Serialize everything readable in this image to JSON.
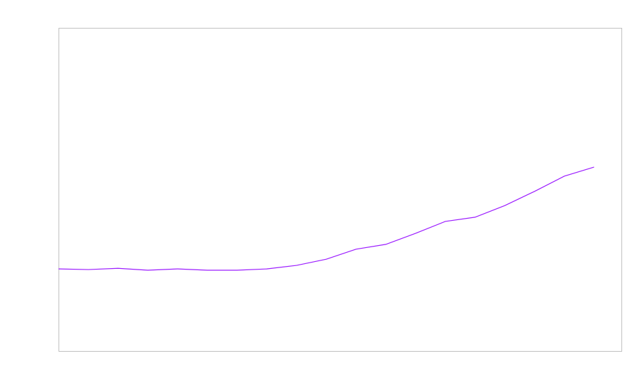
{
  "chart_data": {
    "type": "line",
    "title": "",
    "xlabel": "",
    "ylabel": "",
    "x": [
      0,
      1,
      2,
      3,
      4,
      5,
      6,
      7,
      8,
      9,
      10,
      11,
      12,
      13,
      14,
      15,
      16,
      17,
      18
    ],
    "series": [
      {
        "values": [
          25.4,
          25.2,
          25.6,
          25.0,
          25.4,
          25.0,
          25.0,
          25.4,
          26.5,
          28.4,
          31.5,
          33.0,
          36.4,
          40.1,
          41.4,
          45.0,
          49.4,
          54.1,
          56.9
        ],
        "color": "#9b1cff"
      }
    ],
    "xlim": [
      0,
      18.92
    ],
    "ylim": [
      0,
      100
    ],
    "grid": false,
    "tick_labels_visible": false,
    "frame_color": "#c0c0c0"
  }
}
